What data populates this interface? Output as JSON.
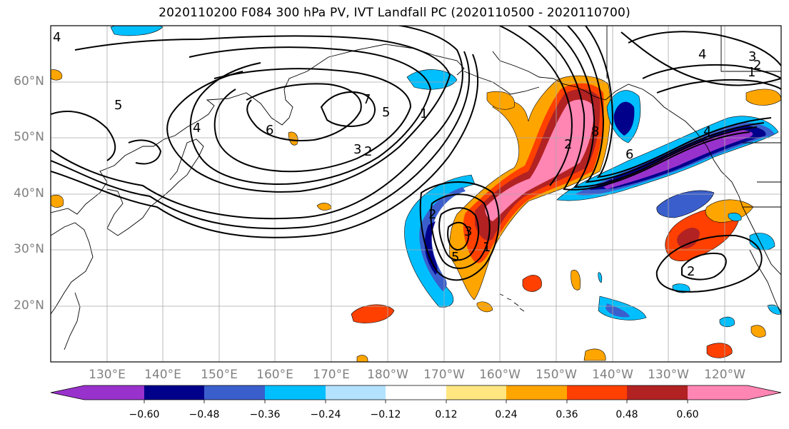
{
  "title": "2020110200 F084 300 hPa PV, IVT Landfall PC (2020110500 - 2020110700)",
  "lat_labels": [
    "60°N",
    "50°N",
    "40°N",
    "30°N",
    "20°N"
  ],
  "lon_labels": [
    "130°E",
    "140°E",
    "150°E",
    "160°E",
    "170°E",
    "180°W",
    "170°W",
    "160°W",
    "150°W",
    "140°W",
    "130°W",
    "120°W"
  ],
  "contour_labels": [
    "4",
    "5",
    "4",
    "6",
    "7",
    "5",
    "3",
    "2",
    "1",
    "3",
    "2",
    "1",
    "4",
    "2",
    "8",
    "6",
    "4",
    "2",
    "3",
    "5",
    "1",
    "2"
  ],
  "colorbar": {
    "labels": [
      "−0.60",
      "−0.48",
      "−0.36",
      "−0.24",
      "−0.12",
      "0.12",
      "0.24",
      "0.36",
      "0.48",
      "0.60"
    ],
    "colors": [
      "#9932cc",
      "#00008b",
      "#3a5fcd",
      "#00bfff",
      "#b2e2ff",
      "#ffffff",
      "#ffe680",
      "#ffa500",
      "#ff4000",
      "#b22222",
      "#ff85b3"
    ]
  }
}
